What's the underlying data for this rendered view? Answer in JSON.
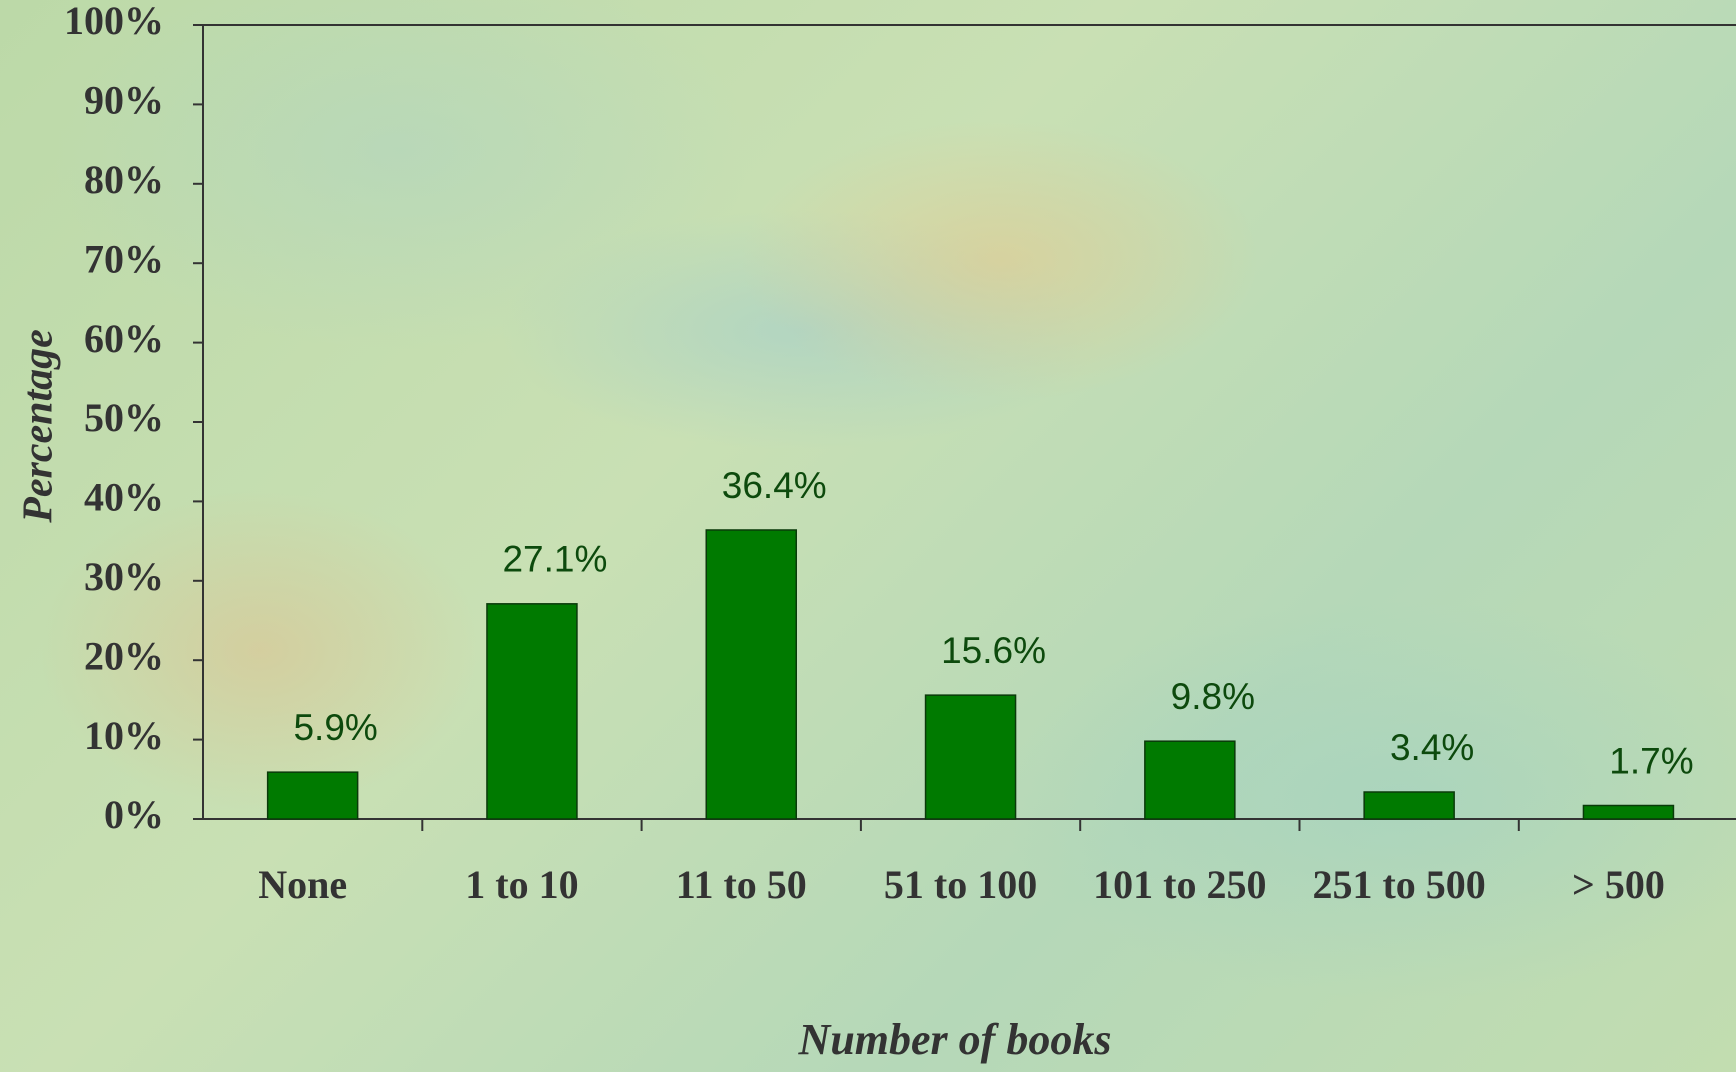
{
  "chart_data": {
    "type": "bar",
    "x_label": "Number of books",
    "y_label": "Percentage",
    "categories": [
      "None",
      "1 to 10",
      "11 to 50",
      "51 to 100",
      "101 to 250",
      "251 to 500",
      "> 500"
    ],
    "values": [
      5.9,
      27.1,
      36.4,
      15.6,
      9.8,
      3.4,
      1.7
    ],
    "value_labels": [
      "5.9%",
      "27.1%",
      "36.4%",
      "15.6%",
      "9.8%",
      "3.4%",
      "1.7%"
    ],
    "color": "#007a00",
    "ylim": [
      0,
      100
    ],
    "yticks": [
      {
        "value": 0,
        "label": "0%"
      },
      {
        "value": 10,
        "label": "10%"
      },
      {
        "value": 20,
        "label": "20%"
      },
      {
        "value": 30,
        "label": "30%"
      },
      {
        "value": 40,
        "label": "40%"
      },
      {
        "value": 50,
        "label": "50%"
      },
      {
        "value": 60,
        "label": "60%"
      },
      {
        "value": 70,
        "label": "70%"
      },
      {
        "value": 80,
        "label": "80%"
      },
      {
        "value": 90,
        "label": "90%"
      },
      {
        "value": 100,
        "label": "100%"
      }
    ],
    "grid": false
  }
}
